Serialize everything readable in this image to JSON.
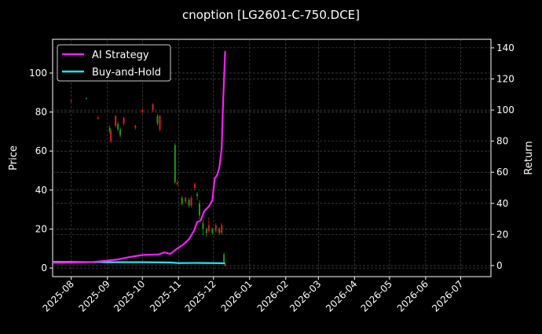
{
  "chart_data": {
    "type": "candlestick+line",
    "title": "cnoption [LG2601-C-750.DCE]",
    "ylabel": "Price",
    "ylabel_right": "Return",
    "xlim": [
      "2025-07-16",
      "2026-07-27"
    ],
    "ylim": [
      -4.4,
      117.3
    ],
    "ylim_right": [
      -7.1,
      145.5
    ],
    "grid": true,
    "legend_position": "top-left",
    "x_ticks": [
      "2025-08",
      "2025-09",
      "2025-10",
      "2025-11",
      "2025-12",
      "2026-01",
      "2026-02",
      "2026-03",
      "2026-04",
      "2026-05",
      "2026-06",
      "2026-07"
    ],
    "y_ticks": [
      0,
      20,
      40,
      60,
      80,
      100
    ],
    "y_ticks_right": [
      0,
      20,
      40,
      60,
      80,
      100,
      120,
      140
    ],
    "colors": {
      "up": "#1a9a1a",
      "down": "#e01a1a",
      "strategy": "#ff1aff",
      "buyhold": "#1ae6ee",
      "background": "#000000",
      "grid": "#555555"
    },
    "candles": [
      [
        "2025-08-01",
        86,
        86,
        85,
        85.5
      ],
      [
        "2025-08-14",
        87,
        87.5,
        86.5,
        87
      ],
      [
        "2025-08-24",
        77,
        78,
        76,
        76.5
      ],
      [
        "2025-09-03",
        70,
        73,
        69,
        72
      ],
      [
        "2025-09-04",
        70,
        71,
        64,
        65
      ],
      [
        "2025-09-08",
        78,
        78.5,
        72,
        73
      ],
      [
        "2025-09-10",
        71,
        75,
        70,
        74
      ],
      [
        "2025-09-12",
        68,
        72,
        67,
        71
      ],
      [
        "2025-09-15",
        77,
        77.5,
        73,
        74
      ],
      [
        "2025-09-25",
        73,
        73.5,
        71,
        72
      ],
      [
        "2025-10-01",
        81,
        82,
        79,
        80
      ],
      [
        "2025-10-10",
        84,
        84.5,
        80,
        81
      ],
      [
        "2025-10-14",
        74,
        79,
        73,
        78
      ],
      [
        "2025-10-16",
        78,
        78.5,
        70,
        71
      ],
      [
        "2025-10-29",
        44,
        64,
        43,
        63
      ],
      [
        "2025-10-31",
        44,
        45.5,
        42,
        43
      ],
      [
        "2025-11-04",
        33,
        37,
        32,
        36
      ],
      [
        "2025-11-07",
        36,
        36.5,
        33,
        34
      ],
      [
        "2025-11-10",
        32,
        36,
        31,
        35
      ],
      [
        "2025-11-12",
        36,
        37,
        31,
        32
      ],
      [
        "2025-11-15",
        43,
        44,
        40,
        41
      ],
      [
        "2025-11-17",
        37,
        39,
        35,
        38
      ],
      [
        "2025-11-19",
        27,
        35,
        25,
        33
      ],
      [
        "2025-11-22",
        20,
        25,
        17,
        23
      ],
      [
        "2025-11-25",
        18,
        21,
        16,
        20
      ],
      [
        "2025-11-27",
        22,
        26,
        18,
        19
      ],
      [
        "2025-11-30",
        18,
        21,
        17,
        20
      ],
      [
        "2025-12-03",
        22,
        23,
        18,
        19
      ],
      [
        "2025-12-06",
        18,
        21,
        17,
        20
      ],
      [
        "2025-12-08",
        22,
        23,
        17,
        18
      ],
      [
        "2025-12-10",
        3,
        8,
        2,
        7
      ],
      [
        "2025-12-11",
        2,
        2.5,
        0.8,
        1
      ]
    ],
    "series": [
      {
        "name": "AI Strategy",
        "axis": "right",
        "points": [
          [
            "2025-07-16",
            1.8
          ],
          [
            "2025-08-01",
            1.9
          ],
          [
            "2025-08-20",
            2.3
          ],
          [
            "2025-09-01",
            3.2
          ],
          [
            "2025-09-10",
            4.0
          ],
          [
            "2025-09-20",
            5.5
          ],
          [
            "2025-10-01",
            6.8
          ],
          [
            "2025-10-15",
            7.2
          ],
          [
            "2025-10-20",
            8.5
          ],
          [
            "2025-10-25",
            7.5
          ],
          [
            "2025-10-30",
            10.5
          ],
          [
            "2025-11-05",
            13.5
          ],
          [
            "2025-11-10",
            17
          ],
          [
            "2025-11-14",
            22
          ],
          [
            "2025-11-17",
            28
          ],
          [
            "2025-11-20",
            29
          ],
          [
            "2025-11-23",
            35
          ],
          [
            "2025-11-27",
            38
          ],
          [
            "2025-11-30",
            42
          ],
          [
            "2025-12-02",
            56
          ],
          [
            "2025-12-04",
            58
          ],
          [
            "2025-12-06",
            63
          ],
          [
            "2025-12-08",
            75
          ],
          [
            "2025-12-09",
            100
          ],
          [
            "2025-12-11",
            138
          ]
        ]
      },
      {
        "name": "Buy-and-Hold",
        "axis": "right",
        "points": [
          [
            "2025-07-16",
            2.4
          ],
          [
            "2025-08-01",
            2.3
          ],
          [
            "2025-09-01",
            2.2
          ],
          [
            "2025-10-01",
            2.2
          ],
          [
            "2025-10-25",
            2.0
          ],
          [
            "2025-11-01",
            1.6
          ],
          [
            "2025-11-15",
            1.7
          ],
          [
            "2025-12-01",
            1.6
          ],
          [
            "2025-12-11",
            1.5
          ]
        ]
      }
    ]
  }
}
